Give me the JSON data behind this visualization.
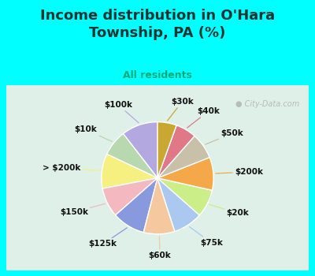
{
  "title": "Income distribution in O'Hara\nTownship, PA (%)",
  "subtitle": "All residents",
  "title_color": "#1a3333",
  "subtitle_color": "#00aa77",
  "background_color": "#00ffff",
  "chart_bg_color": "#dff0e8",
  "labels": [
    "$100k",
    "$10k",
    "> $200k",
    "$150k",
    "$125k",
    "$60k",
    "$75k",
    "$20k",
    "$200k",
    "$50k",
    "$40k",
    "$30k"
  ],
  "sizes": [
    10.5,
    7.5,
    10.0,
    8.5,
    9.5,
    9.0,
    8.5,
    8.0,
    9.5,
    7.5,
    6.0,
    5.5
  ],
  "colors": [
    "#b3a8e0",
    "#b8d8b0",
    "#f5f080",
    "#f4b8c0",
    "#8899dd",
    "#f5c8a0",
    "#aac8f0",
    "#ccee88",
    "#f4a84a",
    "#c8c0a8",
    "#e07888",
    "#c8a830"
  ],
  "startangle": 90,
  "wedge_edge_color": "#ffffff",
  "label_fontsize": 7.5,
  "label_color": "#111111",
  "watermark": "City-Data.com"
}
